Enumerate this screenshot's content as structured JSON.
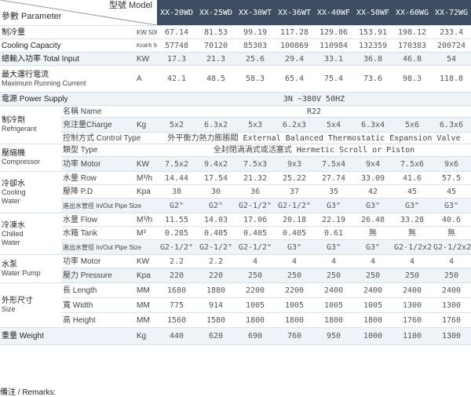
{
  "header": {
    "param_label": "參數 Parameter",
    "model_label": "型號 Model",
    "models": [
      "XX-20WD",
      "XX-25WD",
      "XX-30WT",
      "XX-36WT",
      "XX-40WF",
      "XX-50WF",
      "XX-60WG",
      "XX-72WG"
    ]
  },
  "rows": {
    "cooling_capacity": {
      "label_zh": "制冷量",
      "label_en": "Cooling Capacity",
      "unit_kw": "KW 50HZ",
      "unit_kcal": "Kcal/h 50HZ",
      "kw": [
        "67.14",
        "81.53",
        "99.19",
        "117.28",
        "129.06",
        "153.91",
        "198.12",
        "233.4"
      ],
      "kcal": [
        "57748",
        "70120",
        "85303",
        "100869",
        "110984",
        "132359",
        "170383",
        "200724"
      ]
    },
    "total_input": {
      "label": "總輸入功率 Total Input",
      "unit": "KW",
      "values": [
        "17.3",
        "21.3",
        "25.6",
        "29.4",
        "33.1",
        "36.8",
        "46.8",
        "54"
      ]
    },
    "max_current": {
      "label_zh": "最大運行電流",
      "label_en": "Maximum Running Current",
      "unit": "A",
      "values": [
        "42.1",
        "48.5",
        "58.3",
        "65.4",
        "75.4",
        "73.6",
        "98.3",
        "118.8"
      ]
    },
    "power_supply": {
      "label": "電源 Power Supply",
      "value": "3N ~380V 50HZ"
    },
    "refrigerant": {
      "label_zh": "制冷劑",
      "label_en": "Refrigerant",
      "name_label": "名稱 Name",
      "name_value": "R22",
      "charge_label": "充注量Charge",
      "charge_unit": "Kg",
      "charge_values": [
        "5x2",
        "6.3x2",
        "5x3",
        "6.2x3",
        "5x4",
        "6.3x4",
        "5x6",
        "6.3x6"
      ],
      "control_label": "控制方式 Control Type",
      "control_value": "外平衡力熱力膨脹閥 External Balanced Thermostatic Expansion Valve"
    },
    "compressor": {
      "label_zh": "壓縮機",
      "label_en": "Compressor",
      "type_label": "類型 Type",
      "type_value": "全封閉渦渦式或活塞式 Hermetic Scroll or Piston",
      "motor_label": "功率 Motor",
      "motor_unit": "KW",
      "motor_values": [
        "7.5x2",
        "9.4x2",
        "7.5x3",
        "9x3",
        "7.5x4",
        "9x4",
        "7.5x6",
        "9x6"
      ]
    },
    "cooling_water": {
      "label_zh": "冷卻水",
      "label_en1": "Cooling",
      "label_en2": "Water",
      "flow_label": "水量 Row",
      "flow_unit": "M³/h",
      "flow_values": [
        "14.44",
        "17.54",
        "21.32",
        "25.22",
        "27.74",
        "33.09",
        "41.6",
        "57.5"
      ],
      "pd_label": "壓降 P.D",
      "pd_unit": "Kpa",
      "pd_values": [
        "38",
        "30",
        "36",
        "37",
        "35",
        "42",
        "45",
        "45"
      ],
      "pipe_label": "進出水管徑 In/Out Pipe Size",
      "pipe_values": [
        "G2\"",
        "G2\"",
        "G2-1/2\"",
        "G2-1/2\"",
        "G3\"",
        "G3\"",
        "G3\"",
        "G3\""
      ]
    },
    "chilled_water": {
      "label_zh": "冷凍水",
      "label_en1": "Chilled",
      "label_en2": "Water",
      "flow_label": "水量 Flow",
      "flow_unit": "M³/h",
      "flow_values": [
        "11.55",
        "14.03",
        "17.06",
        "20.18",
        "22.19",
        "26.48",
        "33.28",
        "40.6"
      ],
      "tank_label": "水箱 Tank",
      "tank_unit": "M³",
      "tank_values": [
        "0.285",
        "0.405",
        "0.405",
        "0.405",
        "0.61",
        "無",
        "無",
        "無"
      ],
      "pipe_label": "進出水管徑 In/Out Pipe Size",
      "pipe_values": [
        "G2-1/2\"",
        "G2-1/2\"",
        "G2-1/2\"",
        "G3\"",
        "G3\"",
        "G3\"",
        "G2-1/2x2\"",
        "G2-1/2x2\""
      ]
    },
    "water_pump": {
      "label_zh": "水泵",
      "label_en": "Water Pump",
      "motor_label": "功率 Motor",
      "motor_unit": "KW",
      "motor_values": [
        "2.2",
        "2.2",
        "4",
        "4",
        "4",
        "4",
        "4",
        "4"
      ],
      "pressure_label": "壓力 Pressure",
      "pressure_unit": "Kpa",
      "pressure_values": [
        "220",
        "220",
        "250",
        "250",
        "250",
        "250",
        "250",
        "250"
      ]
    },
    "size": {
      "label_zh": "外形尺寸",
      "label_en": "Size",
      "length_label": "長 Length",
      "width_label": "寬 Width",
      "height_label": "高 Height",
      "unit": "MM",
      "length_values": [
        "1680",
        "1880",
        "2200",
        "2200",
        "2400",
        "2400",
        "2400",
        "2400"
      ],
      "width_values": [
        "775",
        "914",
        "1005",
        "1005",
        "1005",
        "1005",
        "1300",
        "1300"
      ],
      "height_values": [
        "1560",
        "1580",
        "1800",
        "1800",
        "1800",
        "1800",
        "1760",
        "1760"
      ]
    },
    "weight": {
      "label": "重量 Weight",
      "unit": "Kg",
      "values": [
        "440",
        "620",
        "690",
        "760",
        "950",
        "1000",
        "1100",
        "1300"
      ]
    }
  },
  "remarks_label": "備注 / Remarks:"
}
